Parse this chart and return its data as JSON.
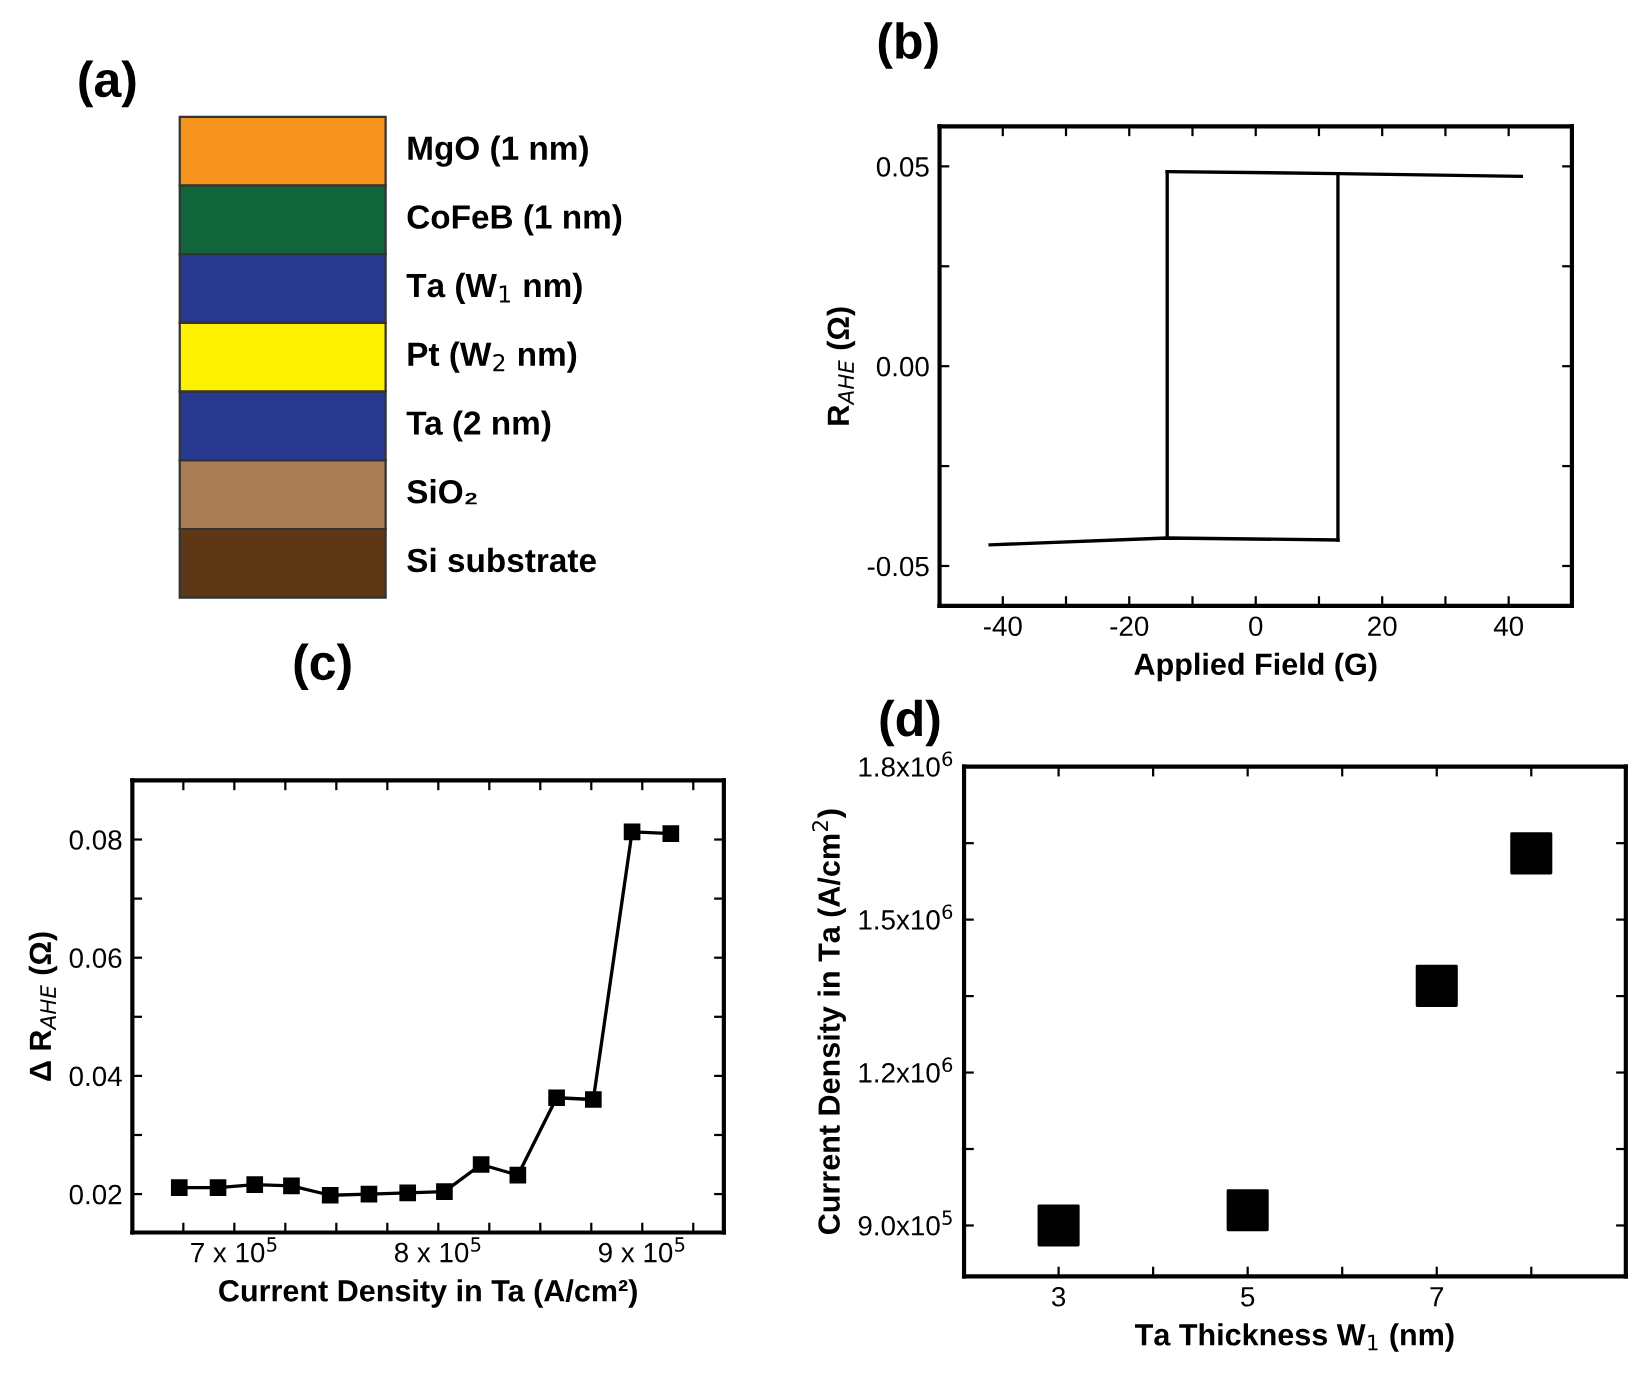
{
  "chart_data": [
    {
      "type": "other",
      "title": "(a)",
      "categories": [
        "MgO (1 nm)",
        "CoFeB (1 nm)",
        "Ta (W$_{1}$ nm)",
        "Pt (W$_{2}$ nm)",
        "Ta (2 nm)",
        "SiO₂",
        "Si substrate"
      ],
      "colors": [
        "#f7941d",
        "#10653a",
        "#283a8f",
        "#fff200",
        "#283a8f",
        "#a87c54",
        "#5e3816"
      ]
    },
    {
      "type": "line",
      "title": "(b)",
      "xlabel": "Applied Field (G)",
      "ylabel": "R$_{AHE}$ (Ω)",
      "xlim": [
        -50,
        50
      ],
      "ylim": [
        -0.06,
        0.06
      ],
      "xticks": [
        -40,
        {
          "value": -30,
          "label": null
        },
        -20,
        {
          "value": -10,
          "label": null
        },
        0,
        {
          "value": 10,
          "label": null
        },
        20,
        {
          "value": 30,
          "label": null
        },
        40
      ],
      "yticks": [
        -0.05,
        {
          "value": -0.025,
          "label": null
        },
        {
          "value": 0,
          "label": "0.00"
        },
        {
          "value": 0.025,
          "label": null
        },
        0.05
      ],
      "marker": "none",
      "line_style": "solid",
      "grid": false,
      "series": [
        {
          "color": "#000000",
          "x": [
            -14,
            13,
            42
          ],
          "values": [
            0.0487,
            0.0482,
            0.0475
          ]
        },
        {
          "color": "#000000",
          "x": [
            -42,
            -14,
            13
          ],
          "values": [
            -0.0447,
            -0.043,
            -0.0435
          ]
        },
        {
          "color": "#000000",
          "x": [
            -14,
            -14
          ],
          "values": [
            -0.043,
            0.0487
          ]
        },
        {
          "color": "#000000",
          "x": [
            13,
            13
          ],
          "values": [
            -0.0435,
            0.0482
          ]
        }
      ]
    },
    {
      "type": "line",
      "title": "(c)",
      "xlabel": "Current Density in Ta (A/cm²)",
      "ylabel": "Δ R$_{AHE}$ (Ω)",
      "xlim": [
        650000,
        940000
      ],
      "ylim": [
        0.0135,
        0.09
      ],
      "xticks": [
        {
          "value": 675000,
          "label": null
        },
        {
          "value": 700000,
          "label": "7 x 10$^{5}$"
        },
        {
          "value": 725000,
          "label": null
        },
        {
          "value": 750000,
          "label": null
        },
        {
          "value": 775000,
          "label": null
        },
        {
          "value": 800000,
          "label": "8 x 10$^{5}$"
        },
        {
          "value": 825000,
          "label": null
        },
        {
          "value": 850000,
          "label": null
        },
        {
          "value": 875000,
          "label": null
        },
        {
          "value": 900000,
          "label": "9 x 10$^{5}$"
        },
        {
          "value": 925000,
          "label": null
        }
      ],
      "yticks": [
        0.02,
        {
          "value": 0.03,
          "label": null
        },
        0.04,
        {
          "value": 0.05,
          "label": null
        },
        0.06,
        {
          "value": 0.07,
          "label": null
        },
        0.08
      ],
      "marker": "square",
      "line_style": "solid",
      "grid": false,
      "series": [
        {
          "color": "#000000",
          "x": [
            673000,
            692000,
            710000,
            728000,
            747000,
            766000,
            785000,
            803000,
            821000,
            839000,
            858000,
            876000,
            895000,
            914000
          ],
          "values": [
            0.0211,
            0.0211,
            0.0216,
            0.0214,
            0.0198,
            0.02,
            0.0202,
            0.0204,
            0.025,
            0.0232,
            0.0363,
            0.036,
            0.0813,
            0.081
          ]
        }
      ]
    },
    {
      "type": "scatter",
      "title": "(d)",
      "xlabel": "Ta Thickness W$_{1}$ (nm)",
      "ylabel": "Current Density in Ta (A/cm$^{2}$)",
      "xlim": [
        2,
        9
      ],
      "ylim": [
        800000,
        1800000
      ],
      "xticks": [
        3,
        {
          "value": 4,
          "label": null
        },
        5,
        {
          "value": 6,
          "label": null
        },
        7,
        {
          "value": 8,
          "label": null
        }
      ],
      "yticks": [
        {
          "value": 900000,
          "label": "9.0x10$^{5}$"
        },
        {
          "value": 1050000,
          "label": null
        },
        {
          "value": 1200000,
          "label": "1.2x10$^{6}$"
        },
        {
          "value": 1350000,
          "label": null
        },
        {
          "value": 1500000,
          "label": "1.5x10$^{6}$"
        },
        {
          "value": 1650000,
          "label": null
        },
        {
          "value": 1800000,
          "label": "1.8x10$^{6}$"
        }
      ],
      "marker": "square",
      "grid": false,
      "series": [
        {
          "color": "#000000",
          "x": [
            3,
            5,
            7,
            8
          ],
          "values": [
            900000,
            930000,
            1370000,
            1630000
          ]
        }
      ]
    }
  ]
}
